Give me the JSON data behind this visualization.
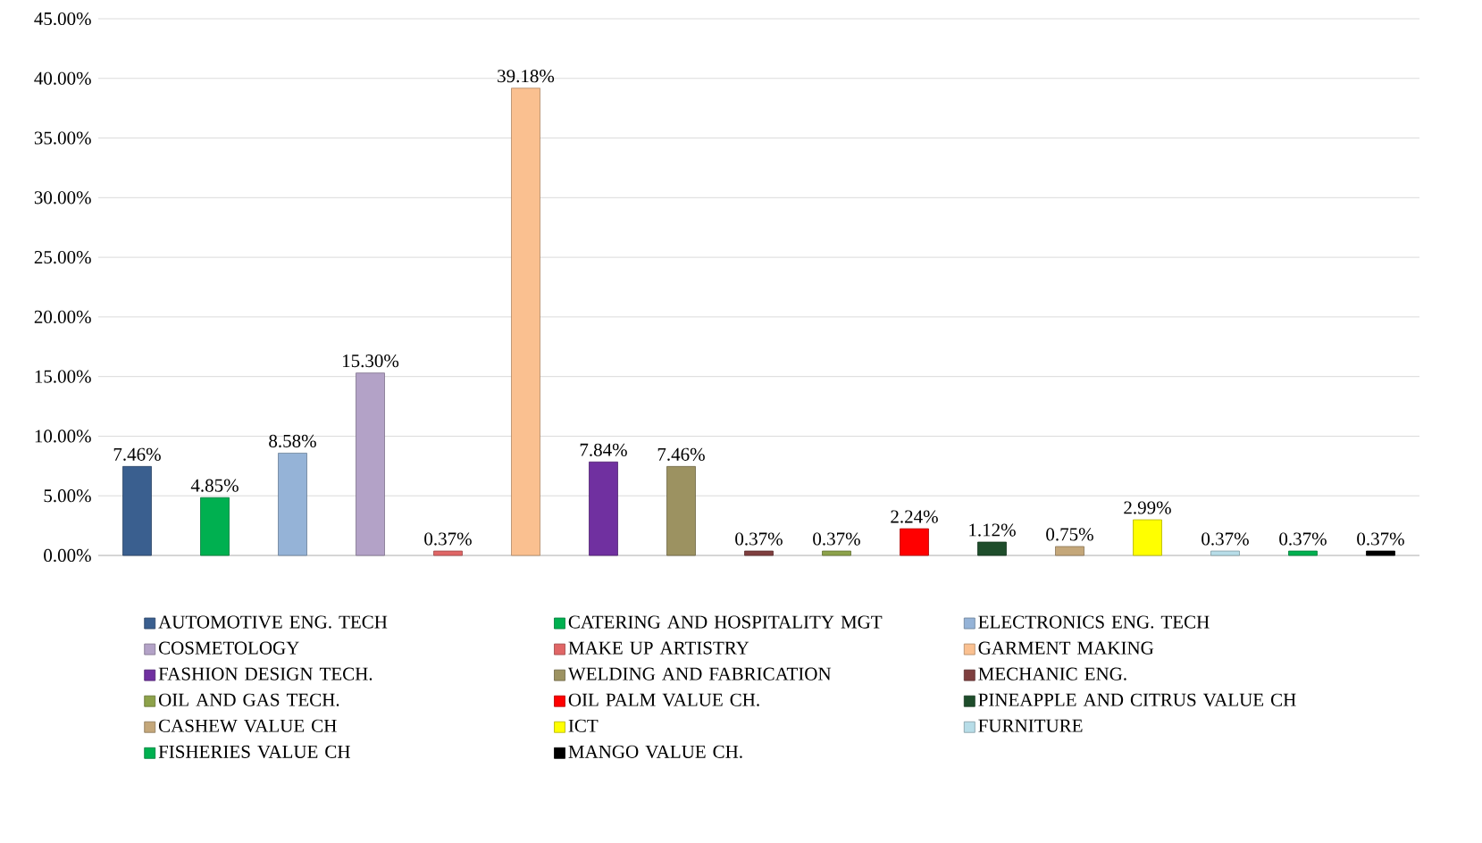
{
  "chart_data": {
    "type": "bar",
    "categories": [
      null,
      null,
      null,
      null,
      null,
      null,
      null,
      null,
      null,
      null,
      null,
      null,
      null,
      null,
      null,
      null,
      null
    ],
    "series": [
      {
        "name": "AUTOMOTIVE ENG. TECH",
        "color": "#3a5f8f",
        "values": [
          7.46,
          null,
          null,
          null,
          null,
          null,
          null,
          null,
          null,
          null,
          null,
          null,
          null,
          null,
          null,
          null,
          null
        ],
        "value_labels": [
          "7.46%",
          null,
          null,
          null,
          null,
          null,
          null,
          null,
          null,
          null,
          null,
          null,
          null,
          null,
          null,
          null,
          null
        ]
      },
      {
        "name": "CATERING AND HOSPITALITY MGT",
        "color": "#00b050",
        "values": [
          null,
          4.85,
          null,
          null,
          null,
          null,
          null,
          null,
          null,
          null,
          null,
          null,
          null,
          null,
          null,
          null,
          null
        ],
        "value_labels": [
          null,
          "4.85%",
          null,
          null,
          null,
          null,
          null,
          null,
          null,
          null,
          null,
          null,
          null,
          null,
          null,
          null,
          null
        ]
      },
      {
        "name": "ELECTRONICS ENG. TECH",
        "color": "#95b3d7",
        "values": [
          null,
          null,
          8.58,
          null,
          null,
          null,
          null,
          null,
          null,
          null,
          null,
          null,
          null,
          null,
          null,
          null,
          null
        ],
        "value_labels": [
          null,
          null,
          "8.58%",
          null,
          null,
          null,
          null,
          null,
          null,
          null,
          null,
          null,
          null,
          null,
          null,
          null,
          null
        ]
      },
      {
        "name": "COSMETOLOGY",
        "color": "#b3a2c7",
        "values": [
          null,
          null,
          null,
          15.3,
          null,
          null,
          null,
          null,
          null,
          null,
          null,
          null,
          null,
          null,
          null,
          null,
          null
        ],
        "value_labels": [
          null,
          null,
          null,
          "15.30%",
          null,
          null,
          null,
          null,
          null,
          null,
          null,
          null,
          null,
          null,
          null,
          null,
          null
        ]
      },
      {
        "name": "MAKE UP ARTISTRY",
        "color": "#e06666",
        "values": [
          null,
          null,
          null,
          null,
          0.37,
          null,
          null,
          null,
          null,
          null,
          null,
          null,
          null,
          null,
          null,
          null,
          null
        ],
        "value_labels": [
          null,
          null,
          null,
          null,
          "0.37%",
          null,
          null,
          null,
          null,
          null,
          null,
          null,
          null,
          null,
          null,
          null,
          null
        ]
      },
      {
        "name": "GARMENT MAKING",
        "color": "#fac090",
        "values": [
          null,
          null,
          null,
          null,
          null,
          39.18,
          null,
          null,
          null,
          null,
          null,
          null,
          null,
          null,
          null,
          null,
          null
        ],
        "value_labels": [
          null,
          null,
          null,
          null,
          null,
          "39.18%",
          null,
          null,
          null,
          null,
          null,
          null,
          null,
          null,
          null,
          null,
          null
        ]
      },
      {
        "name": "FASHION DESIGN TECH.",
        "color": "#7030a0",
        "values": [
          null,
          null,
          null,
          null,
          null,
          null,
          7.84,
          null,
          null,
          null,
          null,
          null,
          null,
          null,
          null,
          null,
          null
        ],
        "value_labels": [
          null,
          null,
          null,
          null,
          null,
          null,
          "7.84%",
          null,
          null,
          null,
          null,
          null,
          null,
          null,
          null,
          null,
          null
        ]
      },
      {
        "name": "WELDING AND FABRICATION",
        "color": "#9c9261",
        "values": [
          null,
          null,
          null,
          null,
          null,
          null,
          null,
          7.46,
          null,
          null,
          null,
          null,
          null,
          null,
          null,
          null,
          null
        ],
        "value_labels": [
          null,
          null,
          null,
          null,
          null,
          null,
          null,
          "7.46%",
          null,
          null,
          null,
          null,
          null,
          null,
          null,
          null,
          null
        ]
      },
      {
        "name": "MECHANIC ENG.",
        "color": "#7f3f3f",
        "values": [
          null,
          null,
          null,
          null,
          null,
          null,
          null,
          null,
          0.37,
          null,
          null,
          null,
          null,
          null,
          null,
          null,
          null
        ],
        "value_labels": [
          null,
          null,
          null,
          null,
          null,
          null,
          null,
          null,
          "0.37%",
          null,
          null,
          null,
          null,
          null,
          null,
          null,
          null
        ]
      },
      {
        "name": "OIL AND GAS TECH.",
        "color": "#8da24a",
        "values": [
          null,
          null,
          null,
          null,
          null,
          null,
          null,
          null,
          null,
          0.37,
          null,
          null,
          null,
          null,
          null,
          null,
          null
        ],
        "value_labels": [
          null,
          null,
          null,
          null,
          null,
          null,
          null,
          null,
          null,
          "0.37%",
          null,
          null,
          null,
          null,
          null,
          null,
          null
        ]
      },
      {
        "name": "OIL PALM VALUE CH.",
        "color": "#ff0000",
        "values": [
          null,
          null,
          null,
          null,
          null,
          null,
          null,
          null,
          null,
          null,
          2.24,
          null,
          null,
          null,
          null,
          null,
          null
        ],
        "value_labels": [
          null,
          null,
          null,
          null,
          null,
          null,
          null,
          null,
          null,
          null,
          "2.24%",
          null,
          null,
          null,
          null,
          null,
          null
        ]
      },
      {
        "name": "PINEAPPLE AND CITRUS VALUE CH",
        "color": "#1e4d2b",
        "values": [
          null,
          null,
          null,
          null,
          null,
          null,
          null,
          null,
          null,
          null,
          null,
          1.12,
          null,
          null,
          null,
          null,
          null
        ],
        "value_labels": [
          null,
          null,
          null,
          null,
          null,
          null,
          null,
          null,
          null,
          null,
          null,
          "1.12%",
          null,
          null,
          null,
          null,
          null
        ]
      },
      {
        "name": "CASHEW VALUE CH",
        "color": "#c4a77a",
        "values": [
          null,
          null,
          null,
          null,
          null,
          null,
          null,
          null,
          null,
          null,
          null,
          null,
          0.75,
          null,
          null,
          null,
          null
        ],
        "value_labels": [
          null,
          null,
          null,
          null,
          null,
          null,
          null,
          null,
          null,
          null,
          null,
          null,
          "0.75%",
          null,
          null,
          null,
          null
        ]
      },
      {
        "name": "ICT",
        "color": "#ffff00",
        "values": [
          null,
          null,
          null,
          null,
          null,
          null,
          null,
          null,
          null,
          null,
          null,
          null,
          null,
          2.99,
          null,
          null,
          null
        ],
        "value_labels": [
          null,
          null,
          null,
          null,
          null,
          null,
          null,
          null,
          null,
          null,
          null,
          null,
          null,
          "2.99%",
          null,
          null,
          null
        ]
      },
      {
        "name": "FURNITURE",
        "color": "#b7dde8",
        "values": [
          null,
          null,
          null,
          null,
          null,
          null,
          null,
          null,
          null,
          null,
          null,
          null,
          null,
          null,
          0.37,
          null,
          null
        ],
        "value_labels": [
          null,
          null,
          null,
          null,
          null,
          null,
          null,
          null,
          null,
          null,
          null,
          null,
          null,
          null,
          "0.37%",
          null,
          null
        ]
      },
      {
        "name": "FISHERIES VALUE CH",
        "color": "#00b050",
        "values": [
          null,
          null,
          null,
          null,
          null,
          null,
          null,
          null,
          null,
          null,
          null,
          null,
          null,
          null,
          null,
          0.37,
          null
        ],
        "value_labels": [
          null,
          null,
          null,
          null,
          null,
          null,
          null,
          null,
          null,
          null,
          null,
          null,
          null,
          null,
          null,
          "0.37%",
          null
        ]
      },
      {
        "name": "MANGO VALUE CH.",
        "color": "#000000",
        "values": [
          null,
          null,
          null,
          null,
          null,
          null,
          null,
          null,
          null,
          null,
          null,
          null,
          null,
          null,
          null,
          null,
          0.37
        ],
        "value_labels": [
          null,
          null,
          null,
          null,
          null,
          null,
          null,
          null,
          null,
          null,
          null,
          null,
          null,
          null,
          null,
          null,
          "0.37%"
        ]
      }
    ],
    "ylim": [
      0,
      45
    ],
    "yticks": [
      {
        "value": 0,
        "label": "0.00%"
      },
      {
        "value": 5,
        "label": "5.00%"
      },
      {
        "value": 10,
        "label": "10.00%"
      },
      {
        "value": 15,
        "label": "15.00%"
      },
      {
        "value": 20,
        "label": "20.00%"
      },
      {
        "value": 25,
        "label": "25.00%"
      },
      {
        "value": 30,
        "label": "30.00%"
      },
      {
        "value": 35,
        "label": "35.00%"
      },
      {
        "value": 40,
        "label": "40.00%"
      },
      {
        "value": 45,
        "label": "45.00%"
      }
    ],
    "grid": "y",
    "legend": "bottom",
    "tick_labels": "y"
  }
}
